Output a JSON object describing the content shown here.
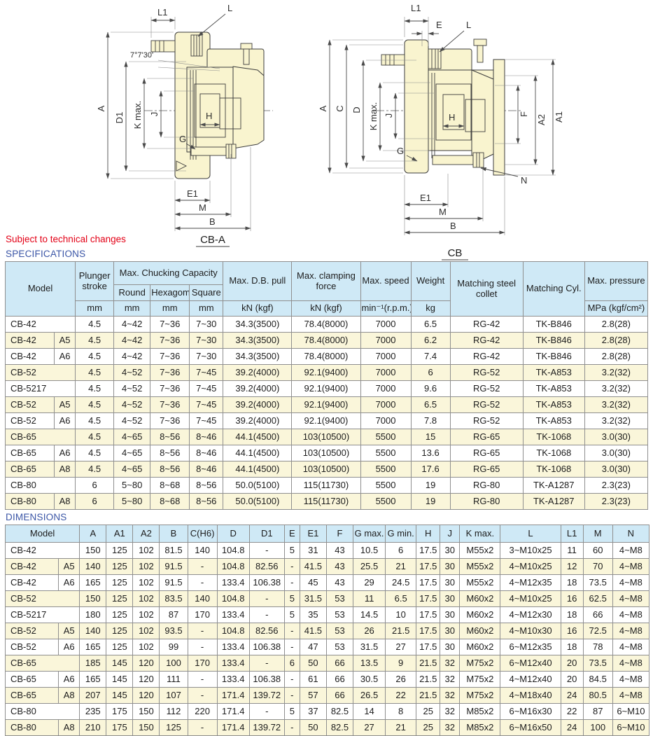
{
  "page": {
    "note": "Subject to technical changes"
  },
  "diagrams": {
    "cba": {
      "caption": "CB-A",
      "angle": "7°7'30'",
      "l1": "L1",
      "l": "L",
      "a": "A",
      "d1": "D1",
      "kmax": "K max.",
      "j": "J",
      "h": "H",
      "g": "G",
      "e1": "E1",
      "m": "M",
      "b": "B"
    },
    "cb": {
      "caption": "CB",
      "l1": "L1",
      "e": "E",
      "l": "L",
      "a": "A",
      "c": "C",
      "d": "D",
      "kmax": "K max.",
      "j": "J",
      "h": "H",
      "f": "F",
      "a2": "A2",
      "a1": "A1",
      "g": "G",
      "n": "N",
      "e1": "E1",
      "m": "M",
      "b": "B"
    }
  },
  "specifications": {
    "title": "SPECIFICATIONS",
    "header": {
      "model": "Model",
      "plunger_stroke": "Plunger stroke",
      "chucking": "Max. Chucking Capacity",
      "round": "Round",
      "hexagom": "Hexagom",
      "square": "Square",
      "db_pull": "Max. D.B. pull",
      "clamping": "Max. clamping force",
      "speed": "Max. speed",
      "weight": "Weight",
      "collet": "Matching steel collet",
      "cyl": "Matching Cyl.",
      "pressure": "Max. pressure"
    },
    "units": {
      "stroke": "mm",
      "round": "mm",
      "hexagom": "mm",
      "square": "mm",
      "db_pull": "kN (kgf)",
      "clamping": "kN (kgf)",
      "speed": "min⁻¹(r.p.m.)",
      "weight": "kg",
      "pressure": "MPa (kgf/cm²)"
    },
    "rows": [
      [
        "CB-42",
        "",
        "4.5",
        "4~42",
        "7~36",
        "7~30",
        "34.3(3500)",
        "78.4(8000)",
        "7000",
        "6.5",
        "RG-42",
        "TK-B846",
        "2.8(28)"
      ],
      [
        "CB-42",
        "A5",
        "4.5",
        "4~42",
        "7~36",
        "7~30",
        "34.3(3500)",
        "78.4(8000)",
        "7000",
        "6.2",
        "RG-42",
        "TK-B846",
        "2.8(28)"
      ],
      [
        "CB-42",
        "A6",
        "4.5",
        "4~42",
        "7~36",
        "7~30",
        "34.3(3500)",
        "78.4(8000)",
        "7000",
        "7.4",
        "RG-42",
        "TK-B846",
        "2.8(28)"
      ],
      [
        "CB-52",
        "",
        "4.5",
        "4~52",
        "7~36",
        "7~45",
        "39.2(4000)",
        "92.1(9400)",
        "7000",
        "6",
        "RG-52",
        "TK-A853",
        "3.2(32)"
      ],
      [
        "CB-5217",
        "",
        "4.5",
        "4~52",
        "7~36",
        "7~45",
        "39.2(4000)",
        "92.1(9400)",
        "7000",
        "9.6",
        "RG-52",
        "TK-A853",
        "3.2(32)"
      ],
      [
        "CB-52",
        "A5",
        "4.5",
        "4~52",
        "7~36",
        "7~45",
        "39.2(4000)",
        "92.1(9400)",
        "7000",
        "6.5",
        "RG-52",
        "TK-A853",
        "3.2(32)"
      ],
      [
        "CB-52",
        "A6",
        "4.5",
        "4~52",
        "7~36",
        "7~45",
        "39.2(4000)",
        "92.1(9400)",
        "7000",
        "7.8",
        "RG-52",
        "TK-A853",
        "3.2(32)"
      ],
      [
        "CB-65",
        "",
        "4.5",
        "4~65",
        "8~56",
        "8~46",
        "44.1(4500)",
        "103(10500)",
        "5500",
        "15",
        "RG-65",
        "TK-1068",
        "3.0(30)"
      ],
      [
        "CB-65",
        "A6",
        "4.5",
        "4~65",
        "8~56",
        "8~46",
        "44.1(4500)",
        "103(10500)",
        "5500",
        "13.6",
        "RG-65",
        "TK-1068",
        "3.0(30)"
      ],
      [
        "CB-65",
        "A8",
        "4.5",
        "4~65",
        "8~56",
        "8~46",
        "44.1(4500)",
        "103(10500)",
        "5500",
        "17.6",
        "RG-65",
        "TK-1068",
        "3.0(30)"
      ],
      [
        "CB-80",
        "",
        "6",
        "5~80",
        "8~68",
        "8~56",
        "50.0(5100)",
        "115(11730)",
        "5500",
        "19",
        "RG-80",
        "TK-A1287",
        "2.3(23)"
      ],
      [
        "CB-80",
        "A8",
        "6",
        "5~80",
        "8~68",
        "8~56",
        "50.0(5100)",
        "115(11730)",
        "5500",
        "19",
        "RG-80",
        "TK-A1287",
        "2.3(23)"
      ]
    ]
  },
  "dimensions": {
    "title": "DIMENSIONS",
    "model_label": "Model",
    "columns": [
      "A",
      "A1",
      "A2",
      "B",
      "C(H6)",
      "D",
      "D1",
      "E",
      "E1",
      "F",
      "G max.",
      "G min.",
      "H",
      "J",
      "K max.",
      "L",
      "L1",
      "M",
      "N"
    ],
    "rows": [
      [
        "CB-42",
        "",
        "150",
        "125",
        "102",
        "81.5",
        "140",
        "104.8",
        "-",
        "5",
        "31",
        "43",
        "10.5",
        "6",
        "17.5",
        "30",
        "M55x2",
        "3~M10x25",
        "11",
        "60",
        "4~M8"
      ],
      [
        "CB-42",
        "A5",
        "140",
        "125",
        "102",
        "91.5",
        "-",
        "104.8",
        "82.56",
        "-",
        "41.5",
        "43",
        "25.5",
        "21",
        "17.5",
        "30",
        "M55x2",
        "4~M10x25",
        "12",
        "70",
        "4~M8"
      ],
      [
        "CB-42",
        "A6",
        "165",
        "125",
        "102",
        "91.5",
        "-",
        "133.4",
        "106.38",
        "-",
        "45",
        "43",
        "29",
        "24.5",
        "17.5",
        "30",
        "M55x2",
        "4~M12x35",
        "18",
        "73.5",
        "4~M8"
      ],
      [
        "CB-52",
        "",
        "150",
        "125",
        "102",
        "83.5",
        "140",
        "104.8",
        "-",
        "5",
        "31.5",
        "53",
        "11",
        "6.5",
        "17.5",
        "30",
        "M60x2",
        "4~M10x25",
        "16",
        "62.5",
        "4~M8"
      ],
      [
        "CB-5217",
        "",
        "180",
        "125",
        "102",
        "87",
        "170",
        "133.4",
        "-",
        "5",
        "35",
        "53",
        "14.5",
        "10",
        "17.5",
        "30",
        "M60x2",
        "4~M12x30",
        "18",
        "66",
        "4~M8"
      ],
      [
        "CB-52",
        "A5",
        "140",
        "125",
        "102",
        "93.5",
        "-",
        "104.8",
        "82.56",
        "-",
        "41.5",
        "53",
        "26",
        "21.5",
        "17.5",
        "30",
        "M60x2",
        "4~M10x30",
        "16",
        "72.5",
        "4~M8"
      ],
      [
        "CB-52",
        "A6",
        "165",
        "125",
        "102",
        "99",
        "-",
        "133.4",
        "106.38",
        "-",
        "47",
        "53",
        "31.5",
        "27",
        "17.5",
        "30",
        "M60x2",
        "6~M12x35",
        "18",
        "78",
        "4~M8"
      ],
      [
        "CB-65",
        "",
        "185",
        "145",
        "120",
        "100",
        "170",
        "133.4",
        "-",
        "6",
        "50",
        "66",
        "13.5",
        "9",
        "21.5",
        "32",
        "M75x2",
        "6~M12x40",
        "20",
        "73.5",
        "4~M8"
      ],
      [
        "CB-65",
        "A6",
        "165",
        "145",
        "120",
        "111",
        "-",
        "133.4",
        "106.38",
        "-",
        "61",
        "66",
        "30.5",
        "26",
        "21.5",
        "32",
        "M75x2",
        "4~M12x40",
        "20",
        "84.5",
        "4~M8"
      ],
      [
        "CB-65",
        "A8",
        "207",
        "145",
        "120",
        "107",
        "-",
        "171.4",
        "139.72",
        "-",
        "57",
        "66",
        "26.5",
        "22",
        "21.5",
        "32",
        "M75x2",
        "4~M18x40",
        "24",
        "80.5",
        "4~M8"
      ],
      [
        "CB-80",
        "",
        "235",
        "175",
        "150",
        "112",
        "220",
        "171.4",
        "-",
        "5",
        "37",
        "82.5",
        "14",
        "8",
        "25",
        "32",
        "M85x2",
        "6~M16x30",
        "22",
        "87",
        "6~M10"
      ],
      [
        "CB-80",
        "A8",
        "210",
        "175",
        "150",
        "125",
        "-",
        "171.4",
        "139.72",
        "-",
        "50",
        "82.5",
        "27",
        "21",
        "25",
        "32",
        "M85x2",
        "6~M16x50",
        "24",
        "100",
        "6~M10"
      ]
    ]
  }
}
